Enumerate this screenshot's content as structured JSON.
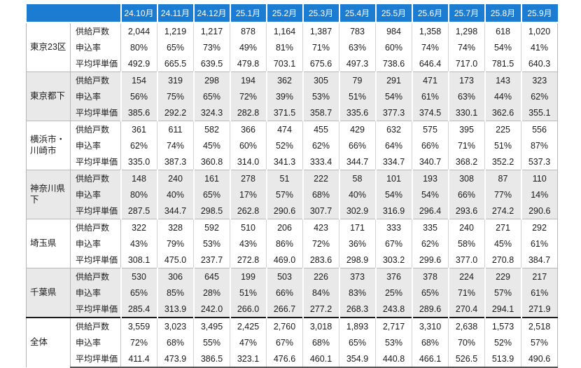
{
  "colors": {
    "header_bg": "#1b7cd2",
    "header_text": "#ffffff",
    "shaded_block_bg": "#e9e9e9",
    "white_block_bg": "#ffffff",
    "grid_line": "#c4c4c4",
    "total_divider": "#1a1a1a",
    "text": "#1a1a1a"
  },
  "chart_data": {
    "type": "table",
    "months": [
      "24.10月",
      "24.11月",
      "24.12月",
      "25.1月",
      "25.2月",
      "25.3月",
      "25.4月",
      "25.5月",
      "25.6月",
      "25.7月",
      "25.8月",
      "25.9月"
    ],
    "metric_labels": [
      "供給戸数",
      "申込率",
      "平均坪単価"
    ],
    "regions": [
      {
        "name": "東京23区",
        "metrics": [
          {
            "label": "供給戸数",
            "values": [
              "2,044",
              "1,219",
              "1,217",
              "878",
              "1,164",
              "1,387",
              "783",
              "984",
              "1,358",
              "1,298",
              "618",
              "1,020"
            ]
          },
          {
            "label": "申込率",
            "values": [
              "80%",
              "65%",
              "73%",
              "49%",
              "81%",
              "71%",
              "63%",
              "60%",
              "74%",
              "74%",
              "54%",
              "41%"
            ]
          },
          {
            "label": "平均坪単価",
            "values": [
              "492.9",
              "665.5",
              "639.5",
              "479.8",
              "703.1",
              "675.6",
              "497.3",
              "738.6",
              "646.4",
              "717.0",
              "781.5",
              "640.3"
            ]
          }
        ]
      },
      {
        "name": "東京都下",
        "metrics": [
          {
            "label": "供給戸数",
            "values": [
              "154",
              "319",
              "298",
              "194",
              "362",
              "305",
              "79",
              "291",
              "471",
              "173",
              "143",
              "323"
            ]
          },
          {
            "label": "申込率",
            "values": [
              "56%",
              "75%",
              "65%",
              "72%",
              "39%",
              "53%",
              "51%",
              "54%",
              "61%",
              "63%",
              "44%",
              "62%"
            ]
          },
          {
            "label": "平均坪単価",
            "values": [
              "385.6",
              "292.2",
              "324.3",
              "282.8",
              "371.5",
              "358.7",
              "335.6",
              "377.3",
              "374.5",
              "330.1",
              "362.6",
              "355.1"
            ]
          }
        ]
      },
      {
        "name": "横浜市・川崎市",
        "metrics": [
          {
            "label": "供給戸数",
            "values": [
              "361",
              "611",
              "582",
              "366",
              "474",
              "455",
              "429",
              "632",
              "575",
              "395",
              "225",
              "556"
            ]
          },
          {
            "label": "申込率",
            "values": [
              "62%",
              "74%",
              "45%",
              "60%",
              "52%",
              "62%",
              "66%",
              "64%",
              "66%",
              "71%",
              "51%",
              "87%"
            ]
          },
          {
            "label": "平均坪単価",
            "values": [
              "335.0",
              "387.3",
              "360.8",
              "314.0",
              "341.3",
              "333.4",
              "344.7",
              "334.7",
              "340.7",
              "368.2",
              "352.2",
              "537.3"
            ]
          }
        ]
      },
      {
        "name": "神奈川県下",
        "metrics": [
          {
            "label": "供給戸数",
            "values": [
              "148",
              "240",
              "161",
              "278",
              "51",
              "222",
              "58",
              "101",
              "193",
              "308",
              "87",
              "110"
            ]
          },
          {
            "label": "申込率",
            "values": [
              "80%",
              "40%",
              "65%",
              "17%",
              "57%",
              "68%",
              "40%",
              "54%",
              "54%",
              "66%",
              "77%",
              "14%"
            ]
          },
          {
            "label": "平均坪単価",
            "values": [
              "287.5",
              "344.7",
              "298.5",
              "262.8",
              "290.6",
              "307.7",
              "302.9",
              "316.9",
              "296.4",
              "293.6",
              "274.2",
              "290.6"
            ]
          }
        ]
      },
      {
        "name": "埼玉県",
        "metrics": [
          {
            "label": "供給戸数",
            "values": [
              "322",
              "328",
              "592",
              "510",
              "206",
              "423",
              "171",
              "333",
              "335",
              "240",
              "271",
              "292"
            ]
          },
          {
            "label": "申込率",
            "values": [
              "43%",
              "79%",
              "53%",
              "43%",
              "86%",
              "72%",
              "36%",
              "67%",
              "62%",
              "58%",
              "45%",
              "61%"
            ]
          },
          {
            "label": "平均坪単価",
            "values": [
              "308.1",
              "475.0",
              "237.7",
              "272.8",
              "469.0",
              "283.6",
              "298.9",
              "303.2",
              "299.6",
              "377.0",
              "270.8",
              "384.7"
            ]
          }
        ]
      },
      {
        "name": "千葉県",
        "metrics": [
          {
            "label": "供給戸数",
            "values": [
              "530",
              "306",
              "645",
              "199",
              "503",
              "226",
              "373",
              "376",
              "378",
              "224",
              "229",
              "217"
            ]
          },
          {
            "label": "申込率",
            "values": [
              "65%",
              "85%",
              "28%",
              "51%",
              "66%",
              "84%",
              "83%",
              "25%",
              "65%",
              "71%",
              "57%",
              "61%"
            ]
          },
          {
            "label": "平均坪単価",
            "values": [
              "285.4",
              "313.9",
              "242.0",
              "266.0",
              "266.7",
              "277.2",
              "268.3",
              "243.8",
              "289.6",
              "270.4",
              "294.1",
              "271.9"
            ]
          }
        ]
      },
      {
        "name": "全体",
        "metrics": [
          {
            "label": "供給戸数",
            "values": [
              "3,559",
              "3,023",
              "3,495",
              "2,425",
              "2,760",
              "3,018",
              "1,893",
              "2,717",
              "3,310",
              "2,638",
              "1,573",
              "2,518"
            ]
          },
          {
            "label": "申込率",
            "values": [
              "72%",
              "68%",
              "55%",
              "47%",
              "67%",
              "68%",
              "65%",
              "53%",
              "68%",
              "70%",
              "52%",
              "57%"
            ]
          },
          {
            "label": "平均坪単価",
            "values": [
              "411.4",
              "473.9",
              "386.5",
              "323.1",
              "476.6",
              "460.1",
              "354.9",
              "440.8",
              "466.1",
              "526.5",
              "513.9",
              "490.6"
            ]
          }
        ]
      }
    ]
  }
}
